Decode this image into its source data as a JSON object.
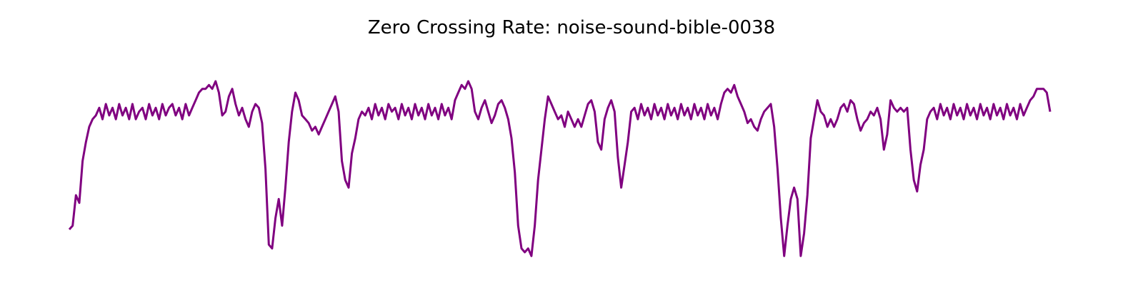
{
  "chart_data": {
    "type": "line",
    "title": "Zero Crossing Rate: noise-sound-bible-0038",
    "xlabel": "",
    "ylabel": "",
    "axes_visible": false,
    "grid": false,
    "xlim": [
      0,
      400
    ],
    "ylim": [
      0,
      0.6
    ],
    "series": [
      {
        "color": "#800080",
        "points": [
          [
            0,
            0.09
          ],
          [
            1,
            0.1
          ],
          [
            2,
            0.18
          ],
          [
            3,
            0.16
          ],
          [
            4,
            0.27
          ],
          [
            5,
            0.32
          ],
          [
            6,
            0.36
          ],
          [
            7,
            0.38
          ],
          [
            8,
            0.39
          ],
          [
            9,
            0.41
          ],
          [
            10,
            0.38
          ],
          [
            11,
            0.42
          ],
          [
            12,
            0.39
          ],
          [
            13,
            0.41
          ],
          [
            14,
            0.38
          ],
          [
            15,
            0.42
          ],
          [
            16,
            0.39
          ],
          [
            17,
            0.41
          ],
          [
            18,
            0.38
          ],
          [
            19,
            0.42
          ],
          [
            20,
            0.38
          ],
          [
            21,
            0.4
          ],
          [
            22,
            0.41
          ],
          [
            23,
            0.38
          ],
          [
            24,
            0.42
          ],
          [
            25,
            0.39
          ],
          [
            26,
            0.41
          ],
          [
            27,
            0.38
          ],
          [
            28,
            0.42
          ],
          [
            29,
            0.39
          ],
          [
            30,
            0.41
          ],
          [
            31,
            0.42
          ],
          [
            32,
            0.39
          ],
          [
            33,
            0.41
          ],
          [
            34,
            0.38
          ],
          [
            35,
            0.42
          ],
          [
            36,
            0.39
          ],
          [
            37,
            0.41
          ],
          [
            38,
            0.43
          ],
          [
            39,
            0.45
          ],
          [
            40,
            0.46
          ],
          [
            41,
            0.46
          ],
          [
            42,
            0.47
          ],
          [
            43,
            0.46
          ],
          [
            44,
            0.48
          ],
          [
            45,
            0.45
          ],
          [
            46,
            0.39
          ],
          [
            47,
            0.4
          ],
          [
            48,
            0.44
          ],
          [
            49,
            0.46
          ],
          [
            50,
            0.42
          ],
          [
            51,
            0.39
          ],
          [
            52,
            0.41
          ],
          [
            53,
            0.38
          ],
          [
            54,
            0.36
          ],
          [
            55,
            0.4
          ],
          [
            56,
            0.42
          ],
          [
            57,
            0.41
          ],
          [
            58,
            0.37
          ],
          [
            59,
            0.25
          ],
          [
            60,
            0.05
          ],
          [
            61,
            0.04
          ],
          [
            62,
            0.12
          ],
          [
            63,
            0.17
          ],
          [
            64,
            0.1
          ],
          [
            65,
            0.2
          ],
          [
            66,
            0.32
          ],
          [
            67,
            0.4
          ],
          [
            68,
            0.45
          ],
          [
            69,
            0.43
          ],
          [
            70,
            0.39
          ],
          [
            71,
            0.38
          ],
          [
            72,
            0.37
          ],
          [
            73,
            0.35
          ],
          [
            74,
            0.36
          ],
          [
            75,
            0.34
          ],
          [
            76,
            0.36
          ],
          [
            77,
            0.38
          ],
          [
            78,
            0.4
          ],
          [
            79,
            0.42
          ],
          [
            80,
            0.44
          ],
          [
            81,
            0.4
          ],
          [
            82,
            0.27
          ],
          [
            83,
            0.22
          ],
          [
            84,
            0.2
          ],
          [
            85,
            0.29
          ],
          [
            86,
            0.33
          ],
          [
            87,
            0.38
          ],
          [
            88,
            0.4
          ],
          [
            89,
            0.39
          ],
          [
            90,
            0.41
          ],
          [
            91,
            0.38
          ],
          [
            92,
            0.42
          ],
          [
            93,
            0.39
          ],
          [
            94,
            0.41
          ],
          [
            95,
            0.38
          ],
          [
            96,
            0.42
          ],
          [
            97,
            0.4
          ],
          [
            98,
            0.41
          ],
          [
            99,
            0.38
          ],
          [
            100,
            0.42
          ],
          [
            101,
            0.39
          ],
          [
            102,
            0.41
          ],
          [
            103,
            0.38
          ],
          [
            104,
            0.42
          ],
          [
            105,
            0.39
          ],
          [
            106,
            0.41
          ],
          [
            107,
            0.38
          ],
          [
            108,
            0.42
          ],
          [
            109,
            0.39
          ],
          [
            110,
            0.41
          ],
          [
            111,
            0.38
          ],
          [
            112,
            0.42
          ],
          [
            113,
            0.39
          ],
          [
            114,
            0.41
          ],
          [
            115,
            0.38
          ],
          [
            116,
            0.43
          ],
          [
            117,
            0.45
          ],
          [
            118,
            0.47
          ],
          [
            119,
            0.46
          ],
          [
            120,
            0.48
          ],
          [
            121,
            0.46
          ],
          [
            122,
            0.4
          ],
          [
            123,
            0.38
          ],
          [
            124,
            0.41
          ],
          [
            125,
            0.43
          ],
          [
            126,
            0.4
          ],
          [
            127,
            0.37
          ],
          [
            128,
            0.39
          ],
          [
            129,
            0.42
          ],
          [
            130,
            0.43
          ],
          [
            131,
            0.41
          ],
          [
            132,
            0.38
          ],
          [
            133,
            0.33
          ],
          [
            134,
            0.24
          ],
          [
            135,
            0.1
          ],
          [
            136,
            0.04
          ],
          [
            137,
            0.03
          ],
          [
            138,
            0.04
          ],
          [
            139,
            0.02
          ],
          [
            140,
            0.1
          ],
          [
            141,
            0.22
          ],
          [
            142,
            0.3
          ],
          [
            143,
            0.38
          ],
          [
            144,
            0.44
          ],
          [
            145,
            0.42
          ],
          [
            146,
            0.4
          ],
          [
            147,
            0.38
          ],
          [
            148,
            0.39
          ],
          [
            149,
            0.36
          ],
          [
            150,
            0.4
          ],
          [
            151,
            0.38
          ],
          [
            152,
            0.36
          ],
          [
            153,
            0.38
          ],
          [
            154,
            0.36
          ],
          [
            155,
            0.39
          ],
          [
            156,
            0.42
          ],
          [
            157,
            0.43
          ],
          [
            158,
            0.4
          ],
          [
            159,
            0.32
          ],
          [
            160,
            0.3
          ],
          [
            161,
            0.38
          ],
          [
            162,
            0.41
          ],
          [
            163,
            0.43
          ],
          [
            164,
            0.4
          ],
          [
            165,
            0.28
          ],
          [
            166,
            0.2
          ],
          [
            167,
            0.26
          ],
          [
            168,
            0.32
          ],
          [
            169,
            0.4
          ],
          [
            170,
            0.41
          ],
          [
            171,
            0.38
          ],
          [
            172,
            0.42
          ],
          [
            173,
            0.39
          ],
          [
            174,
            0.41
          ],
          [
            175,
            0.38
          ],
          [
            176,
            0.42
          ],
          [
            177,
            0.39
          ],
          [
            178,
            0.41
          ],
          [
            179,
            0.38
          ],
          [
            180,
            0.42
          ],
          [
            181,
            0.39
          ],
          [
            182,
            0.41
          ],
          [
            183,
            0.38
          ],
          [
            184,
            0.42
          ],
          [
            185,
            0.39
          ],
          [
            186,
            0.41
          ],
          [
            187,
            0.38
          ],
          [
            188,
            0.42
          ],
          [
            189,
            0.39
          ],
          [
            190,
            0.41
          ],
          [
            191,
            0.38
          ],
          [
            192,
            0.42
          ],
          [
            193,
            0.39
          ],
          [
            194,
            0.41
          ],
          [
            195,
            0.38
          ],
          [
            196,
            0.42
          ],
          [
            197,
            0.45
          ],
          [
            198,
            0.46
          ],
          [
            199,
            0.45
          ],
          [
            200,
            0.47
          ],
          [
            201,
            0.44
          ],
          [
            202,
            0.42
          ],
          [
            203,
            0.4
          ],
          [
            204,
            0.37
          ],
          [
            205,
            0.38
          ],
          [
            206,
            0.36
          ],
          [
            207,
            0.35
          ],
          [
            208,
            0.38
          ],
          [
            209,
            0.4
          ],
          [
            210,
            0.41
          ],
          [
            211,
            0.42
          ],
          [
            212,
            0.36
          ],
          [
            213,
            0.25
          ],
          [
            214,
            0.12
          ],
          [
            215,
            0.02
          ],
          [
            216,
            0.1
          ],
          [
            217,
            0.17
          ],
          [
            218,
            0.2
          ],
          [
            219,
            0.17
          ],
          [
            220,
            0.02
          ],
          [
            221,
            0.08
          ],
          [
            222,
            0.18
          ],
          [
            223,
            0.33
          ],
          [
            224,
            0.38
          ],
          [
            225,
            0.43
          ],
          [
            226,
            0.4
          ],
          [
            227,
            0.39
          ],
          [
            228,
            0.36
          ],
          [
            229,
            0.38
          ],
          [
            230,
            0.36
          ],
          [
            231,
            0.38
          ],
          [
            232,
            0.41
          ],
          [
            233,
            0.42
          ],
          [
            234,
            0.4
          ],
          [
            235,
            0.43
          ],
          [
            236,
            0.42
          ],
          [
            237,
            0.38
          ],
          [
            238,
            0.35
          ],
          [
            239,
            0.37
          ],
          [
            240,
            0.38
          ],
          [
            241,
            0.4
          ],
          [
            242,
            0.39
          ],
          [
            243,
            0.41
          ],
          [
            244,
            0.38
          ],
          [
            245,
            0.3
          ],
          [
            246,
            0.34
          ],
          [
            247,
            0.43
          ],
          [
            248,
            0.41
          ],
          [
            249,
            0.4
          ],
          [
            250,
            0.41
          ],
          [
            251,
            0.4
          ],
          [
            252,
            0.41
          ],
          [
            253,
            0.3
          ],
          [
            254,
            0.22
          ],
          [
            255,
            0.19
          ],
          [
            256,
            0.26
          ],
          [
            257,
            0.3
          ],
          [
            258,
            0.38
          ],
          [
            259,
            0.4
          ],
          [
            260,
            0.41
          ],
          [
            261,
            0.38
          ],
          [
            262,
            0.42
          ],
          [
            263,
            0.39
          ],
          [
            264,
            0.41
          ],
          [
            265,
            0.38
          ],
          [
            266,
            0.42
          ],
          [
            267,
            0.39
          ],
          [
            268,
            0.41
          ],
          [
            269,
            0.38
          ],
          [
            270,
            0.42
          ],
          [
            271,
            0.39
          ],
          [
            272,
            0.41
          ],
          [
            273,
            0.38
          ],
          [
            274,
            0.42
          ],
          [
            275,
            0.39
          ],
          [
            276,
            0.41
          ],
          [
            277,
            0.38
          ],
          [
            278,
            0.42
          ],
          [
            279,
            0.39
          ],
          [
            280,
            0.41
          ],
          [
            281,
            0.38
          ],
          [
            282,
            0.42
          ],
          [
            283,
            0.39
          ],
          [
            284,
            0.41
          ],
          [
            285,
            0.38
          ],
          [
            286,
            0.42
          ],
          [
            287,
            0.39
          ],
          [
            288,
            0.41
          ],
          [
            289,
            0.43
          ],
          [
            290,
            0.44
          ],
          [
            291,
            0.46
          ],
          [
            292,
            0.46
          ],
          [
            293,
            0.46
          ],
          [
            294,
            0.45
          ],
          [
            295,
            0.4
          ]
        ]
      }
    ]
  }
}
